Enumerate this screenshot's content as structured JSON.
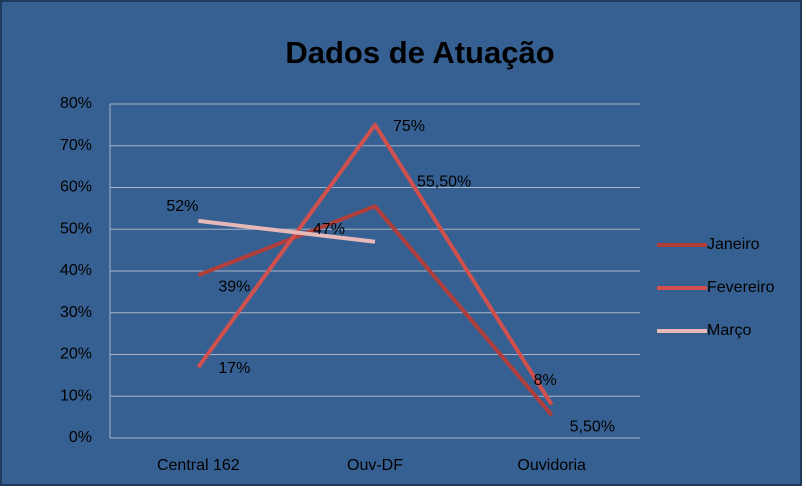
{
  "chart_data": {
    "type": "line",
    "title": "Dados de Atuação",
    "categories": [
      "Central 162",
      "Ouv-DF",
      "Ouvidoria"
    ],
    "series": [
      {
        "name": "Janeiro",
        "color": "#b03f3c",
        "values": [
          39,
          55.5,
          5.5
        ],
        "value_labels": [
          "39%",
          "55,50%",
          "5,50%"
        ]
      },
      {
        "name": "Fevereiro",
        "color": "#d0504d",
        "values": [
          17,
          75,
          8
        ],
        "value_labels": [
          "17%",
          "75%",
          "8%"
        ]
      },
      {
        "name": "Março",
        "color": "#e6b9b8",
        "values": [
          52,
          47,
          null
        ],
        "value_labels": [
          "52%",
          "47%",
          null
        ]
      }
    ],
    "ylim": [
      0,
      80
    ],
    "yticks": [
      {
        "value": 0,
        "label": "0%"
      },
      {
        "value": 10,
        "label": "10%"
      },
      {
        "value": 20,
        "label": "20%"
      },
      {
        "value": 30,
        "label": "30%"
      },
      {
        "value": 40,
        "label": "40%"
      },
      {
        "value": 50,
        "label": "50%"
      },
      {
        "value": 60,
        "label": "60%"
      },
      {
        "value": 70,
        "label": "70%"
      },
      {
        "value": 80,
        "label": "80%"
      }
    ],
    "grid": true,
    "legend": "right"
  }
}
